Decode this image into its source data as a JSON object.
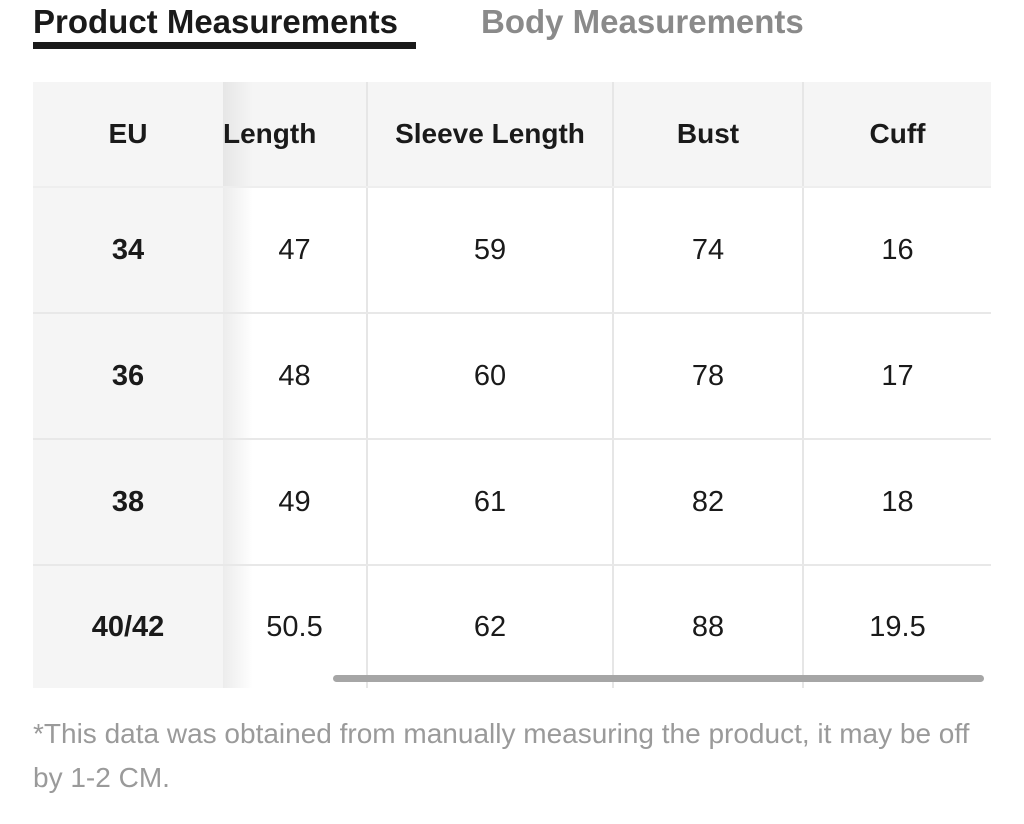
{
  "tabs": [
    {
      "label": "Product Measurements",
      "active": true
    },
    {
      "label": "Body Measurements",
      "active": false
    }
  ],
  "table": {
    "headers": [
      "EU",
      "Length",
      "Sleeve Length",
      "Bust",
      "Cuff"
    ],
    "rows": [
      [
        "34",
        "47",
        "59",
        "74",
        "16"
      ],
      [
        "36",
        "48",
        "60",
        "78",
        "17"
      ],
      [
        "38",
        "49",
        "61",
        "82",
        "18"
      ],
      [
        "40/42",
        "50.5",
        "62",
        "88",
        "19.5"
      ]
    ]
  },
  "footnote": "*This data was obtained from manually measuring the product, it may be off by 1-2 CM.",
  "colors": {
    "active_tab": "#1a1a1a",
    "inactive_tab": "#8a8a8a",
    "header_bg": "#f5f5f5",
    "scrollbar": "#a6a6a6"
  }
}
